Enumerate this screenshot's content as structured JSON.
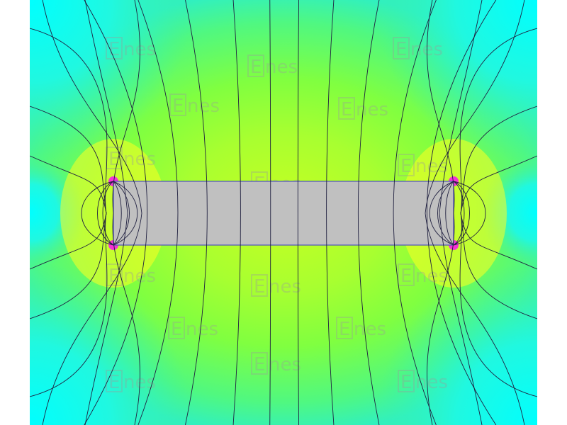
{
  "watermark": {
    "text": "nes",
    "logo_letter": "E"
  },
  "colors": {
    "background_field": "#80ff40",
    "weak_field": "#00ffff",
    "mid_field": "#40f0a0",
    "strong_field": "#ffff20",
    "peak_field": "#ff00ff",
    "conductor_fill": "#c0c0c0",
    "conductor_border": "#5050c0",
    "field_lines": "#202040"
  }
}
